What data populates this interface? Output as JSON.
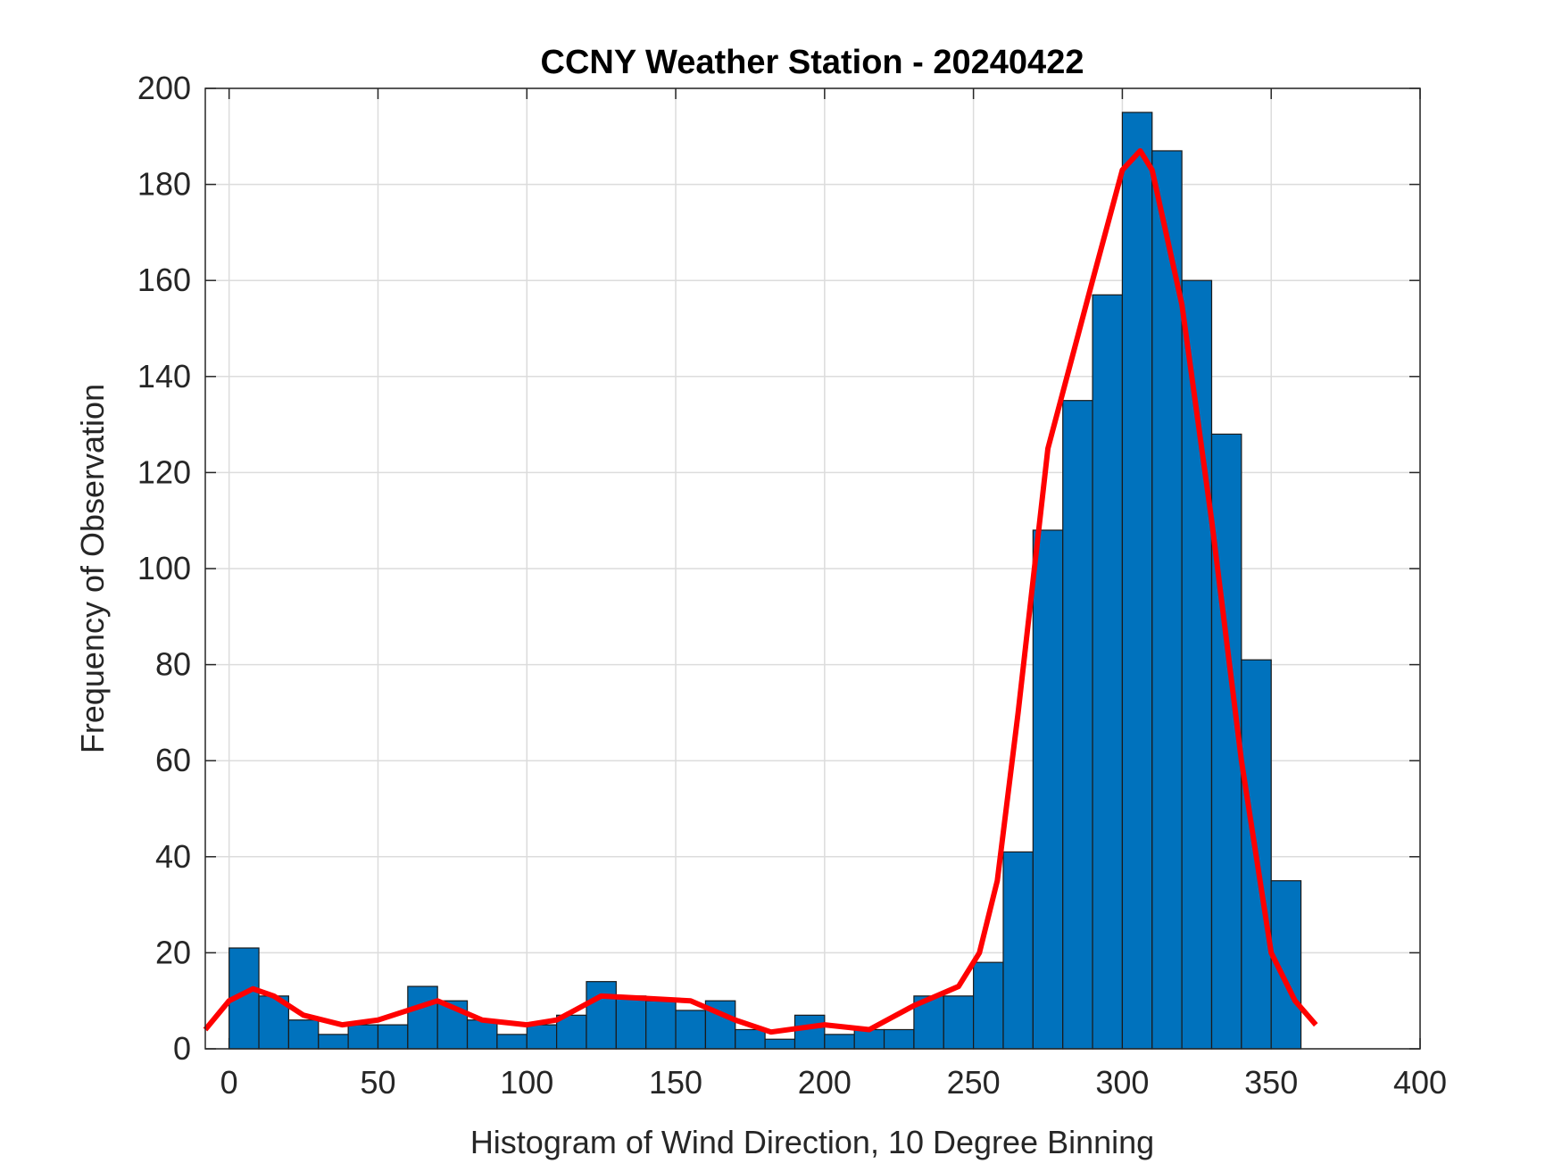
{
  "chart_data": {
    "type": "histogram",
    "title": "CCNY Weather Station - 20240422",
    "xlabel": "Histogram of Wind Direction, 10 Degree Binning",
    "ylabel": "Frequency of Observation",
    "bins": [
      0,
      10,
      20,
      30,
      40,
      50,
      60,
      70,
      80,
      90,
      100,
      110,
      120,
      130,
      140,
      150,
      160,
      170,
      180,
      190,
      200,
      210,
      220,
      230,
      240,
      250,
      260,
      270,
      280,
      290,
      300,
      310,
      320,
      330,
      340,
      350,
      360
    ],
    "values": [
      21,
      11,
      6,
      3,
      5,
      5,
      13,
      10,
      6,
      3,
      5,
      7,
      14,
      11,
      10,
      8,
      10,
      4,
      2,
      7,
      3,
      4,
      4,
      11,
      11,
      18,
      41,
      108,
      135,
      157,
      195,
      187,
      160,
      128,
      81,
      35
    ],
    "color": "#0072bd",
    "series": [
      {
        "type": "line",
        "color": "#ff0000",
        "x": [
          -8,
          0,
          8,
          15,
          25,
          38,
          50,
          70,
          85,
          100,
          110,
          125,
          140,
          155,
          170,
          182,
          200,
          215,
          230,
          245,
          252,
          258,
          265,
          275,
          290,
          300,
          306,
          310,
          320,
          330,
          340,
          350,
          358,
          365
        ],
        "values": [
          4,
          10,
          12.5,
          11,
          7,
          5,
          6,
          10,
          6,
          5,
          6,
          11,
          10.5,
          10,
          6,
          3.5,
          5,
          4,
          9,
          13,
          20,
          35,
          70,
          125,
          160,
          183,
          187,
          183,
          155,
          110,
          60,
          20,
          10,
          5
        ]
      }
    ],
    "xlim": [
      -8,
      400
    ],
    "ylim": [
      0,
      200
    ],
    "xticks": [
      0,
      50,
      100,
      150,
      200,
      250,
      300,
      350,
      400
    ],
    "yticks": [
      0,
      20,
      40,
      60,
      80,
      100,
      120,
      140,
      160,
      180,
      200
    ],
    "grid": true
  }
}
